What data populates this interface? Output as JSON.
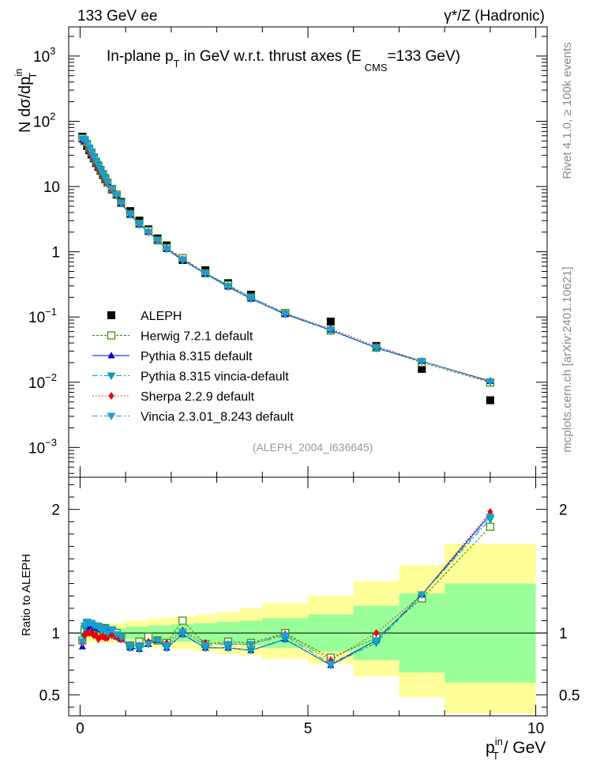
{
  "header": {
    "left": "133 GeV ee",
    "right": "γ*/Z (Hadronic)"
  },
  "side_labels": {
    "rivet": "Rivet 4.1.0, ≥ 100k events",
    "mcplots": "mcplots.cern.ch [arXiv:2401.10621]"
  },
  "watermark": "(ALEPH_2004_I636645)",
  "chart_data": [
    {
      "type": "scatter",
      "panel": "main",
      "title": "In-plane p_T in GeV w.r.t. thrust axes (E_CMS=133 GeV)",
      "title_parts": {
        "a": "In-plane p",
        "a_sub": "T",
        "b": " in GeV w.r.t. thrust axes (E",
        "b_sub": "CMS",
        "c": "=133 GeV)"
      },
      "ylabel": {
        "a": "N  dσ/dp",
        "sup": "in",
        "sub": "T"
      },
      "yscale": "log",
      "ylim": [
        0.00035,
        2800
      ],
      "xlim": [
        -0.25,
        10.25
      ],
      "yticks": [
        {
          "v": 0.001,
          "base": "10",
          "exp": "−3"
        },
        {
          "v": 0.01,
          "base": "10",
          "exp": "−2"
        },
        {
          "v": 0.1,
          "base": "10",
          "exp": "−1"
        },
        {
          "v": 1,
          "base": "1",
          "exp": ""
        },
        {
          "v": 10,
          "base": "10",
          "exp": ""
        },
        {
          "v": 100,
          "base": "10",
          "exp": "2"
        },
        {
          "v": 1000,
          "base": "10",
          "exp": "3"
        }
      ],
      "legend_position": "bottom-left",
      "x": [
        0.05,
        0.1,
        0.15,
        0.2,
        0.25,
        0.3,
        0.35,
        0.4,
        0.45,
        0.5,
        0.55,
        0.6,
        0.7,
        0.8,
        0.9,
        1.1,
        1.3,
        1.5,
        1.7,
        1.9,
        2.25,
        2.75,
        3.25,
        3.75,
        4.5,
        5.5,
        6.5,
        7.5,
        9.0
      ],
      "series": [
        {
          "name": "ALEPH",
          "style": "data",
          "color": "#000000",
          "values": [
            58,
            50,
            42,
            36,
            31,
            27,
            23,
            20,
            17.5,
            15,
            13,
            11.5,
            9,
            7.5,
            5.8,
            4.2,
            3.0,
            2.2,
            1.6,
            1.25,
            0.75,
            0.52,
            0.33,
            0.22,
            0.115,
            0.085,
            0.036,
            0.016,
            0.0053
          ]
        },
        {
          "name": "Herwig 7.2.1 default",
          "style": "open-square",
          "color": "#2e8b00",
          "values": [
            55,
            51,
            45,
            38,
            33,
            28,
            24,
            21,
            18,
            15.5,
            13.5,
            11.5,
            9.2,
            7.5,
            5.6,
            3.8,
            2.7,
            2.1,
            1.5,
            1.15,
            0.8,
            0.47,
            0.31,
            0.2,
            0.115,
            0.062,
            0.034,
            0.02,
            0.0099
          ]
        },
        {
          "name": "Pythia 8.315 default",
          "style": "triangle-up",
          "color": "#0000cc",
          "values": [
            52,
            50,
            44,
            38,
            33,
            28,
            24,
            21,
            18,
            15.5,
            13.5,
            11.5,
            9.2,
            7.3,
            5.5,
            3.7,
            2.6,
            2.0,
            1.5,
            1.1,
            0.74,
            0.46,
            0.29,
            0.19,
            0.11,
            0.063,
            0.034,
            0.021,
            0.0104
          ]
        },
        {
          "name": "Pythia 8.315 vincia-default",
          "style": "triangle-down",
          "color": "#0099bb",
          "values": [
            54,
            52,
            46,
            39,
            33.5,
            28.5,
            24.5,
            21,
            18,
            15.5,
            13.5,
            11.5,
            9.2,
            7.3,
            5.5,
            3.7,
            2.6,
            2.0,
            1.5,
            1.1,
            0.74,
            0.46,
            0.29,
            0.19,
            0.11,
            0.063,
            0.033,
            0.021,
            0.0102
          ]
        },
        {
          "name": "Sherpa 2.2.9 default",
          "style": "diamond",
          "color": "#ee0000",
          "values": [
            53,
            49,
            42,
            36,
            31,
            26.5,
            22.5,
            19,
            17,
            14.5,
            12.5,
            11,
            8.8,
            7.3,
            5.5,
            3.8,
            2.7,
            2.05,
            1.5,
            1.15,
            0.77,
            0.48,
            0.3,
            0.2,
            0.114,
            0.066,
            0.036,
            0.021,
            0.0105
          ]
        },
        {
          "name": "Vincia 2.3.01_8.243 default",
          "style": "triangle-down",
          "color": "#1a9fd0",
          "values": [
            54,
            53,
            46,
            39,
            33.5,
            28.5,
            24.5,
            21,
            18,
            15.5,
            13.5,
            11.5,
            9.3,
            7.4,
            5.6,
            3.8,
            2.7,
            2.0,
            1.5,
            1.12,
            0.76,
            0.47,
            0.3,
            0.2,
            0.113,
            0.064,
            0.034,
            0.021,
            0.0103
          ]
        }
      ]
    },
    {
      "type": "scatter",
      "panel": "ratio",
      "ylabel": "Ratio to ALEPH",
      "xlabel": {
        "a": "p",
        "sup": "in",
        "sub": "T",
        "b": " / GeV"
      },
      "ylim": [
        0.33,
        2.26
      ],
      "xlim": [
        -0.25,
        10.25
      ],
      "yticks": [
        "0.5",
        "1",
        "2"
      ],
      "xticks": [
        "0",
        "5",
        "10"
      ],
      "reference_line": 1,
      "uncertainty_bands": {
        "x_edges": [
          0.0,
          0.5,
          1.0,
          1.5,
          2.0,
          2.5,
          3.0,
          3.5,
          4.0,
          5.0,
          6.0,
          7.0,
          8.0,
          10.0
        ],
        "inner": [
          [
            0.97,
            1.03
          ],
          [
            0.96,
            1.04
          ],
          [
            0.95,
            1.05
          ],
          [
            0.94,
            1.06
          ],
          [
            0.93,
            1.07
          ],
          [
            0.92,
            1.08
          ],
          [
            0.91,
            1.09
          ],
          [
            0.9,
            1.1
          ],
          [
            0.88,
            1.12
          ],
          [
            0.85,
            1.15
          ],
          [
            0.78,
            1.22
          ],
          [
            0.68,
            1.32
          ],
          [
            0.6,
            1.4
          ]
        ],
        "outer": [
          [
            0.93,
            1.07
          ],
          [
            0.92,
            1.08
          ],
          [
            0.9,
            1.1
          ],
          [
            0.88,
            1.12
          ],
          [
            0.87,
            1.13
          ],
          [
            0.85,
            1.15
          ],
          [
            0.83,
            1.17
          ],
          [
            0.82,
            1.2
          ],
          [
            0.79,
            1.24
          ],
          [
            0.75,
            1.3
          ],
          [
            0.65,
            1.42
          ],
          [
            0.48,
            1.55
          ],
          [
            0.35,
            1.72
          ]
        ]
      },
      "x": [
        0.05,
        0.1,
        0.15,
        0.2,
        0.25,
        0.3,
        0.35,
        0.4,
        0.45,
        0.5,
        0.55,
        0.6,
        0.7,
        0.8,
        0.9,
        1.1,
        1.3,
        1.5,
        1.7,
        1.9,
        2.25,
        2.75,
        3.25,
        3.75,
        4.5,
        5.5,
        6.5,
        7.5,
        9.0
      ],
      "series": [
        {
          "name": "Herwig 7.2.1 default",
          "style": "open-square",
          "color": "#2e8b00",
          "values": [
            0.94,
            1.02,
            1.07,
            1.05,
            1.06,
            1.04,
            1.04,
            1.05,
            1.03,
            1.03,
            1.04,
            1.0,
            1.02,
            1.0,
            0.97,
            0.9,
            0.93,
            0.97,
            0.94,
            0.92,
            1.1,
            0.91,
            0.93,
            0.92,
            1.0,
            0.8,
            0.96,
            1.28,
            1.86
          ]
        },
        {
          "name": "Pythia 8.315 default",
          "style": "triangle-up",
          "color": "#0000cc",
          "values": [
            0.89,
            1.0,
            1.05,
            1.06,
            1.06,
            1.04,
            1.04,
            1.05,
            1.03,
            1.03,
            1.04,
            1.0,
            1.02,
            0.97,
            0.95,
            0.88,
            0.87,
            0.91,
            0.94,
            0.88,
            0.99,
            0.88,
            0.88,
            0.86,
            0.95,
            0.74,
            0.94,
            1.31,
            1.96
          ]
        },
        {
          "name": "Pythia 8.315 vincia-default",
          "style": "triangle-down",
          "color": "#0099bb",
          "values": [
            0.93,
            1.04,
            1.09,
            1.08,
            1.08,
            1.06,
            1.06,
            1.05,
            1.03,
            1.03,
            1.04,
            1.0,
            1.02,
            0.97,
            0.95,
            0.88,
            0.87,
            0.91,
            0.94,
            0.88,
            0.99,
            0.88,
            0.88,
            0.86,
            0.95,
            0.74,
            0.92,
            1.31,
            1.92
          ]
        },
        {
          "name": "Sherpa 2.2.9 default",
          "style": "diamond",
          "color": "#ee0000",
          "values": [
            0.92,
            0.98,
            1.0,
            1.0,
            1.0,
            0.98,
            0.98,
            0.95,
            0.97,
            0.97,
            0.96,
            0.96,
            0.98,
            0.97,
            0.95,
            0.9,
            0.9,
            0.93,
            0.94,
            0.92,
            1.02,
            0.92,
            0.91,
            0.91,
            0.99,
            0.78,
            1.0,
            1.31,
            1.98
          ]
        },
        {
          "name": "Vincia 2.3.01_8.243 default",
          "style": "triangle-down",
          "color": "#1a9fd0",
          "values": [
            0.93,
            1.06,
            1.09,
            1.08,
            1.08,
            1.06,
            1.06,
            1.05,
            1.03,
            1.03,
            1.04,
            1.0,
            1.03,
            0.99,
            0.97,
            0.9,
            0.9,
            0.91,
            0.94,
            0.9,
            1.01,
            0.9,
            0.91,
            0.91,
            0.98,
            0.75,
            0.94,
            1.31,
            1.94
          ]
        }
      ]
    }
  ]
}
